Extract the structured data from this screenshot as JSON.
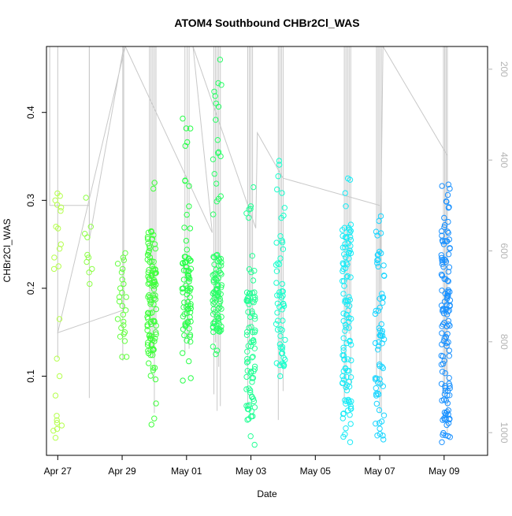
{
  "chart_data": {
    "type": "scatter",
    "title": "ATOM4 Southbound CHBr2Cl_WAS",
    "xlabel": "Date",
    "ylabel": "CHBr2Cl_WAS",
    "xlim": [
      -0.35,
      13.35
    ],
    "ylim": [
      0.01,
      0.475
    ],
    "y2lim": [
      1050,
      150
    ],
    "x_ticks": [
      {
        "x": 0,
        "label": "Apr 27"
      },
      {
        "x": 2,
        "label": "Apr 29"
      },
      {
        "x": 4,
        "label": "May 01"
      },
      {
        "x": 6,
        "label": "May 03"
      },
      {
        "x": 8,
        "label": "May 05"
      },
      {
        "x": 10,
        "label": "May 07"
      },
      {
        "x": 12,
        "label": "May 09"
      }
    ],
    "y_ticks": [
      0.1,
      0.2,
      0.3,
      0.4
    ],
    "y2_ticks": [
      200,
      400,
      600,
      800,
      1000
    ],
    "colors": {
      "series_start": "#b5ff4d",
      "series_mid": "#2aff3a",
      "series_cyan": "#1affd2",
      "series_end": "#1a8cff",
      "trajectory": "#c8c8c8",
      "axis": "#000000",
      "right_axis": "#b4b4b4"
    },
    "clusters": [
      {
        "x": 0.0,
        "n": 24,
        "values": [
          0.308,
          0.305,
          0.3,
          0.295,
          0.292,
          0.288,
          0.27,
          0.268,
          0.25,
          0.245,
          0.235,
          0.225,
          0.222,
          0.165,
          0.12,
          0.1,
          0.078,
          0.055,
          0.05,
          0.047,
          0.044,
          0.04,
          0.038,
          0.03
        ]
      },
      {
        "x": 0.98,
        "n": 10,
        "values": [
          0.303,
          0.27,
          0.262,
          0.258,
          0.238,
          0.235,
          0.23,
          0.222,
          0.218,
          0.205
        ]
      },
      {
        "x": 2.0,
        "n": 26,
        "values": [
          0.24,
          0.235,
          0.232,
          0.228,
          0.222,
          0.218,
          0.21,
          0.205,
          0.2,
          0.195,
          0.19,
          0.185,
          0.18,
          0.175,
          0.17,
          0.165,
          0.162,
          0.158,
          0.155,
          0.15,
          0.148,
          0.145,
          0.14,
          0.122,
          0.122,
          0.19
        ]
      },
      {
        "x": 2.92,
        "n": 110,
        "lo": 0.045,
        "hi": 0.32,
        "dense_lo": 0.13,
        "dense_hi": 0.26
      },
      {
        "x": 4.0,
        "n": 80,
        "lo": 0.095,
        "hi": 0.393,
        "dense_lo": 0.14,
        "dense_hi": 0.24
      },
      {
        "x": 4.95,
        "n": 100,
        "lo": 0.125,
        "hi": 0.46,
        "dense_lo": 0.15,
        "dense_hi": 0.24
      },
      {
        "x": 6.0,
        "n": 85,
        "lo": 0.022,
        "hi": 0.315,
        "dense_lo": 0.05,
        "dense_hi": 0.2
      },
      {
        "x": 6.92,
        "n": 55,
        "lo": 0.1,
        "hi": 0.345,
        "dense_lo": 0.11,
        "dense_hi": 0.26
      },
      {
        "x": 8.98,
        "n": 110,
        "lo": 0.025,
        "hi": 0.325,
        "dense_lo": 0.03,
        "dense_hi": 0.27
      },
      {
        "x": 10.0,
        "n": 65,
        "lo": 0.028,
        "hi": 0.282,
        "dense_lo": 0.03,
        "dense_hi": 0.25
      },
      {
        "x": 12.05,
        "n": 130,
        "lo": 0.025,
        "hi": 0.318,
        "dense_lo": 0.03,
        "dense_hi": 0.265
      }
    ],
    "trajectory": [
      {
        "x": -0.25,
        "p": 150
      },
      {
        "x": -0.25,
        "p": 500
      },
      {
        "x": 0.98,
        "p": 500
      },
      {
        "x": 0.98,
        "p": 150
      },
      {
        "x": 0.98,
        "p": 575
      },
      {
        "x": 2.05,
        "p": 150
      },
      {
        "x": 2.05,
        "p": 730
      },
      {
        "x": 0.0,
        "p": 780
      },
      {
        "x": 2.1,
        "p": 150
      },
      {
        "x": 4.8,
        "p": 560
      },
      {
        "x": 4.2,
        "p": 150
      },
      {
        "x": 6.15,
        "p": 550
      },
      {
        "x": 6.2,
        "p": 340
      },
      {
        "x": 7.0,
        "p": 440
      },
      {
        "x": 10.0,
        "p": 500
      },
      {
        "x": 10.0,
        "p": 720
      },
      {
        "x": 10.1,
        "p": 150
      },
      {
        "x": 12.1,
        "p": 390
      },
      {
        "x": 12.1,
        "p": 1000
      }
    ],
    "spike_x": [
      0.0,
      0.98,
      2.02,
      2.85,
      2.9,
      2.95,
      3.0,
      3.05,
      3.95,
      4.02,
      4.08,
      4.85,
      4.9,
      4.95,
      5.0,
      5.05,
      5.9,
      5.95,
      6.0,
      6.05,
      6.85,
      6.9,
      6.95,
      7.0,
      8.9,
      8.95,
      9.0,
      9.05,
      9.1,
      9.9,
      9.95,
      10.0,
      10.05,
      11.98,
      12.02,
      12.06,
      12.1
    ]
  }
}
